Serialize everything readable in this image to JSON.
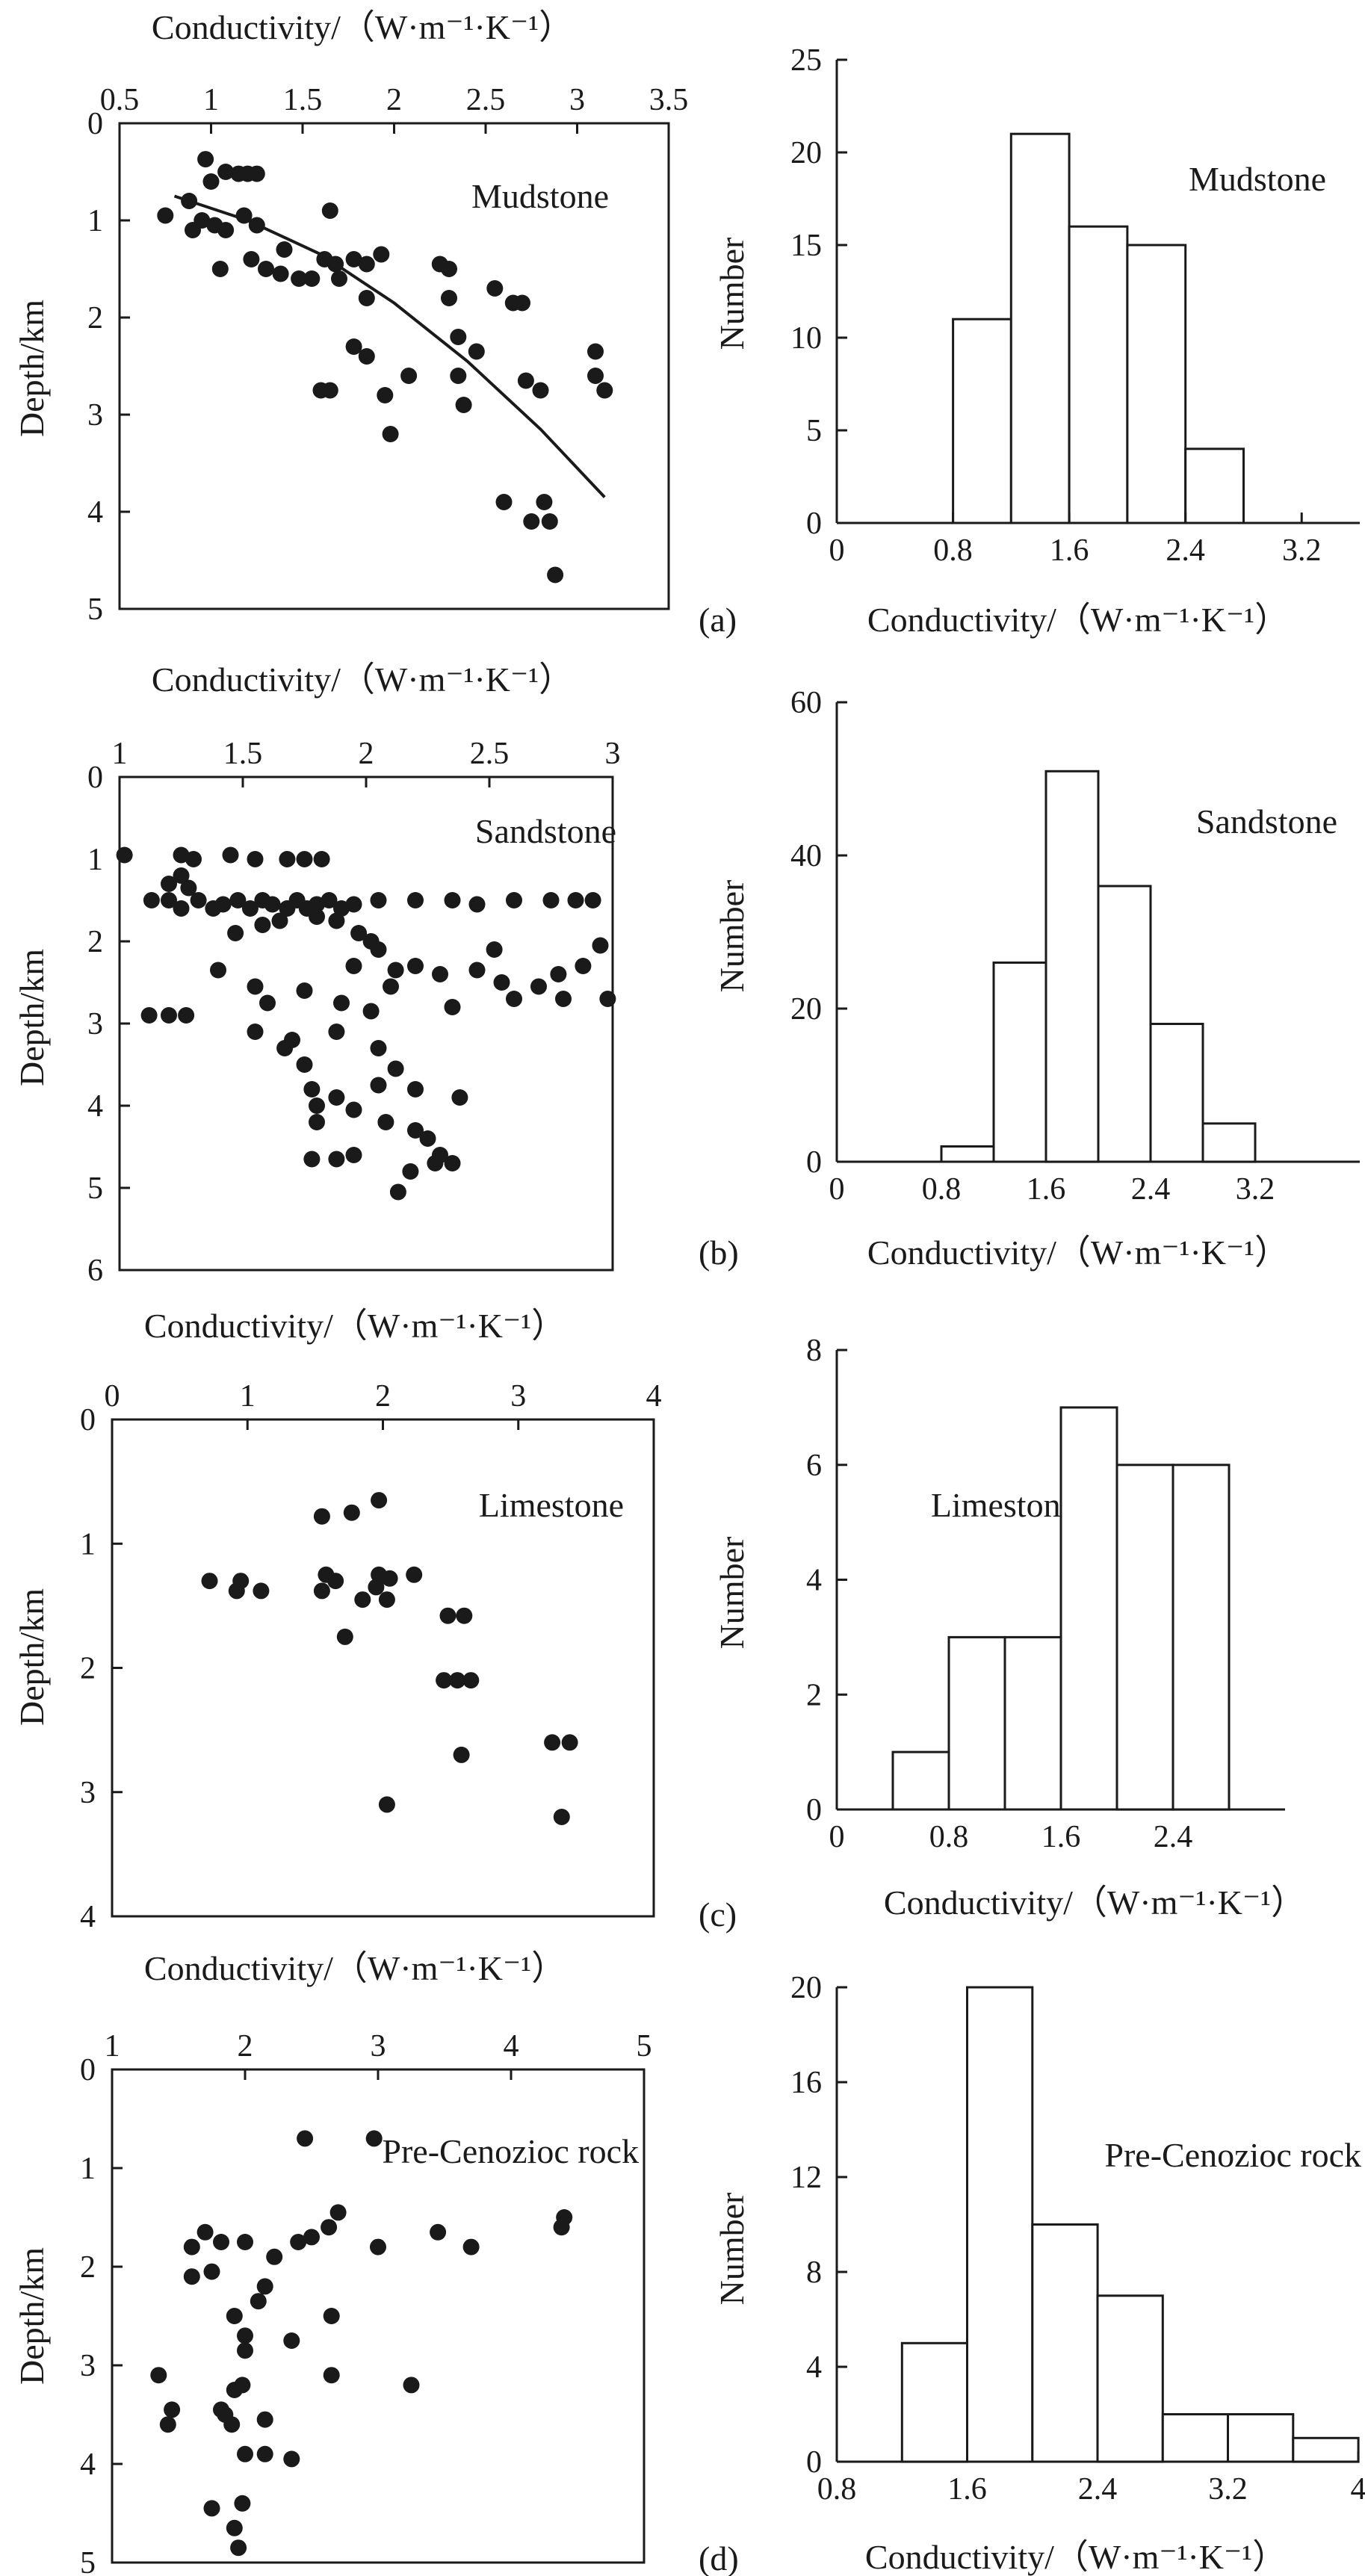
{
  "colors": {
    "ink": "#1a1a1a",
    "background": "#ffffff"
  },
  "chart_data": [
    {
      "type": "scatter",
      "panel": "(a)",
      "rock": "Mudstone",
      "xlabel": "Conductivity/（W·m⁻¹·K⁻¹）",
      "ylabel": "Depth/km",
      "xlim": [
        0.5,
        3.5
      ],
      "ylim": [
        0,
        5
      ],
      "xticks": [
        "0.5",
        "1",
        "1.5",
        "2",
        "2.5",
        "3",
        "3.5"
      ],
      "yticks": [
        "0",
        "1",
        "2",
        "3",
        "4",
        "5"
      ],
      "fit_curve": {
        "x": [
          0.8,
          1.2,
          1.6,
          2.0,
          2.4,
          2.8,
          3.15
        ],
        "y": [
          0.75,
          1.0,
          1.35,
          1.85,
          2.45,
          3.15,
          3.85
        ]
      },
      "points": [
        [
          0.97,
          0.37
        ],
        [
          1.08,
          0.5
        ],
        [
          1.15,
          0.52
        ],
        [
          1.2,
          0.52
        ],
        [
          1.25,
          0.52
        ],
        [
          1.0,
          0.6
        ],
        [
          0.88,
          0.8
        ],
        [
          0.95,
          1.0
        ],
        [
          1.02,
          1.05
        ],
        [
          1.08,
          1.1
        ],
        [
          1.18,
          0.95
        ],
        [
          1.25,
          1.05
        ],
        [
          0.75,
          0.95
        ],
        [
          0.9,
          1.1
        ],
        [
          1.05,
          1.5
        ],
        [
          1.22,
          1.4
        ],
        [
          1.3,
          1.5
        ],
        [
          1.38,
          1.55
        ],
        [
          1.48,
          1.6
        ],
        [
          1.55,
          1.6
        ],
        [
          1.62,
          1.4
        ],
        [
          1.68,
          1.45
        ],
        [
          1.78,
          1.4
        ],
        [
          1.85,
          1.45
        ],
        [
          1.93,
          1.35
        ],
        [
          1.7,
          1.6
        ],
        [
          1.85,
          1.8
        ],
        [
          1.4,
          1.3
        ],
        [
          1.65,
          0.9
        ],
        [
          2.25,
          1.45
        ],
        [
          2.3,
          1.5
        ],
        [
          2.3,
          1.8
        ],
        [
          2.55,
          1.7
        ],
        [
          2.65,
          1.85
        ],
        [
          2.7,
          1.85
        ],
        [
          2.35,
          2.2
        ],
        [
          2.45,
          2.35
        ],
        [
          1.78,
          2.3
        ],
        [
          1.85,
          2.4
        ],
        [
          1.95,
          2.8
        ],
        [
          1.6,
          2.75
        ],
        [
          1.65,
          2.75
        ],
        [
          2.08,
          2.6
        ],
        [
          2.35,
          2.6
        ],
        [
          2.38,
          2.9
        ],
        [
          2.72,
          2.65
        ],
        [
          2.8,
          2.75
        ],
        [
          3.1,
          2.35
        ],
        [
          3.1,
          2.6
        ],
        [
          3.15,
          2.75
        ],
        [
          1.98,
          3.2
        ],
        [
          2.6,
          3.9
        ],
        [
          2.82,
          3.9
        ],
        [
          2.75,
          4.1
        ],
        [
          2.85,
          4.1
        ],
        [
          2.88,
          4.65
        ]
      ]
    },
    {
      "type": "histogram",
      "panel": "(a)",
      "rock": "Mudstone",
      "xlabel": "Conductivity/（W·m⁻¹·K⁻¹）",
      "ylabel": "Number",
      "xlim": [
        0,
        3.6
      ],
      "ylim": [
        0,
        25
      ],
      "xticks": [
        "0",
        "0.8",
        "1.6",
        "2.4",
        "3.2"
      ],
      "yticks": [
        "0",
        "5",
        "10",
        "15",
        "20",
        "25"
      ],
      "bin_width": 0.4,
      "bins": [
        0.8,
        1.2,
        1.6,
        2.0,
        2.4
      ],
      "values": [
        11,
        21,
        16,
        15,
        4
      ]
    },
    {
      "type": "scatter",
      "panel": "(b)",
      "rock": "Sandstone",
      "xlabel": "Conductivity/（W·m⁻¹·K⁻¹）",
      "ylabel": "Depth/km",
      "xlim": [
        1,
        3
      ],
      "ylim": [
        0,
        6
      ],
      "xticks": [
        "1",
        "1.5",
        "2",
        "2.5",
        "3"
      ],
      "yticks": [
        "0",
        "1",
        "2",
        "3",
        "4",
        "5",
        "6"
      ],
      "points": [
        [
          1.02,
          0.95
        ],
        [
          1.25,
          0.95
        ],
        [
          1.3,
          1.0
        ],
        [
          1.45,
          0.95
        ],
        [
          1.55,
          1.0
        ],
        [
          1.68,
          1.0
        ],
        [
          1.75,
          1.0
        ],
        [
          1.82,
          1.0
        ],
        [
          1.2,
          1.3
        ],
        [
          1.25,
          1.2
        ],
        [
          1.28,
          1.35
        ],
        [
          1.13,
          1.5
        ],
        [
          1.2,
          1.5
        ],
        [
          1.25,
          1.6
        ],
        [
          1.32,
          1.5
        ],
        [
          1.38,
          1.6
        ],
        [
          1.42,
          1.55
        ],
        [
          1.48,
          1.5
        ],
        [
          1.53,
          1.6
        ],
        [
          1.58,
          1.5
        ],
        [
          1.62,
          1.55
        ],
        [
          1.68,
          1.6
        ],
        [
          1.72,
          1.5
        ],
        [
          1.76,
          1.6
        ],
        [
          1.8,
          1.55
        ],
        [
          1.85,
          1.5
        ],
        [
          1.9,
          1.6
        ],
        [
          1.95,
          1.55
        ],
        [
          2.05,
          1.5
        ],
        [
          2.2,
          1.5
        ],
        [
          2.35,
          1.5
        ],
        [
          2.45,
          1.55
        ],
        [
          2.6,
          1.5
        ],
        [
          2.75,
          1.5
        ],
        [
          2.85,
          1.5
        ],
        [
          2.92,
          1.5
        ],
        [
          1.47,
          1.9
        ],
        [
          1.58,
          1.8
        ],
        [
          1.65,
          1.75
        ],
        [
          1.8,
          1.7
        ],
        [
          1.88,
          1.75
        ],
        [
          1.97,
          1.9
        ],
        [
          2.02,
          2.0
        ],
        [
          2.05,
          2.1
        ],
        [
          1.95,
          2.3
        ],
        [
          2.12,
          2.35
        ],
        [
          2.2,
          2.3
        ],
        [
          2.3,
          2.4
        ],
        [
          2.45,
          2.35
        ],
        [
          2.52,
          2.1
        ],
        [
          2.55,
          2.5
        ],
        [
          2.6,
          2.7
        ],
        [
          2.7,
          2.55
        ],
        [
          2.78,
          2.4
        ],
        [
          2.88,
          2.3
        ],
        [
          2.95,
          2.05
        ],
        [
          2.98,
          2.7
        ],
        [
          2.8,
          2.7
        ],
        [
          1.4,
          2.35
        ],
        [
          1.55,
          2.55
        ],
        [
          1.6,
          2.75
        ],
        [
          1.75,
          2.6
        ],
        [
          1.9,
          2.75
        ],
        [
          2.02,
          2.85
        ],
        [
          2.1,
          2.55
        ],
        [
          2.35,
          2.8
        ],
        [
          1.12,
          2.9
        ],
        [
          1.2,
          2.9
        ],
        [
          1.27,
          2.9
        ],
        [
          1.55,
          3.1
        ],
        [
          1.7,
          3.2
        ],
        [
          1.88,
          3.1
        ],
        [
          2.05,
          3.3
        ],
        [
          1.67,
          3.3
        ],
        [
          1.75,
          3.5
        ],
        [
          1.78,
          3.8
        ],
        [
          1.88,
          3.9
        ],
        [
          1.95,
          4.05
        ],
        [
          2.05,
          3.75
        ],
        [
          2.12,
          3.55
        ],
        [
          2.2,
          3.8
        ],
        [
          2.2,
          4.3
        ],
        [
          2.25,
          4.4
        ],
        [
          1.8,
          4.2
        ],
        [
          2.38,
          3.9
        ],
        [
          1.78,
          4.65
        ],
        [
          1.88,
          4.65
        ],
        [
          1.95,
          4.6
        ],
        [
          2.28,
          4.7
        ],
        [
          2.35,
          4.7
        ],
        [
          2.18,
          4.8
        ],
        [
          2.13,
          5.05
        ],
        [
          1.8,
          4.0
        ],
        [
          2.08,
          4.2
        ],
        [
          2.3,
          4.6
        ]
      ]
    },
    {
      "type": "histogram",
      "panel": "(b)",
      "rock": "Sandstone",
      "xlabel": "Conductivity/（W·m⁻¹·K⁻¹）",
      "ylabel": "Number",
      "xlim": [
        0,
        4.0
      ],
      "ylim": [
        0,
        60
      ],
      "xticks": [
        "0",
        "0.8",
        "1.6",
        "2.4",
        "3.2"
      ],
      "yticks": [
        "0",
        "20",
        "40",
        "60"
      ],
      "bin_width": 0.4,
      "bins": [
        0.8,
        1.2,
        1.6,
        2.0,
        2.4,
        2.8
      ],
      "values": [
        2,
        26,
        51,
        36,
        18,
        5
      ]
    },
    {
      "type": "scatter",
      "panel": "(c)",
      "rock": "Limestone",
      "xlabel": "Conductivity/（W·m⁻¹·K⁻¹）",
      "ylabel": "Depth/km",
      "xlim": [
        0,
        4
      ],
      "ylim": [
        0,
        4
      ],
      "xticks": [
        "0",
        "1",
        "2",
        "3",
        "4"
      ],
      "yticks": [
        "0",
        "1",
        "2",
        "3",
        "4"
      ],
      "points": [
        [
          1.97,
          0.65
        ],
        [
          1.55,
          0.78
        ],
        [
          1.77,
          0.75
        ],
        [
          0.72,
          1.3
        ],
        [
          0.95,
          1.3
        ],
        [
          1.1,
          1.38
        ],
        [
          0.92,
          1.38
        ],
        [
          1.58,
          1.25
        ],
        [
          1.65,
          1.3
        ],
        [
          1.97,
          1.25
        ],
        [
          2.05,
          1.28
        ],
        [
          2.23,
          1.25
        ],
        [
          1.55,
          1.38
        ],
        [
          1.95,
          1.35
        ],
        [
          2.03,
          1.45
        ],
        [
          1.85,
          1.45
        ],
        [
          1.72,
          1.75
        ],
        [
          2.48,
          1.58
        ],
        [
          2.6,
          1.58
        ],
        [
          2.45,
          2.1
        ],
        [
          2.55,
          2.1
        ],
        [
          2.65,
          2.1
        ],
        [
          2.58,
          2.7
        ],
        [
          3.25,
          2.6
        ],
        [
          3.38,
          2.6
        ],
        [
          3.32,
          3.2
        ],
        [
          2.03,
          3.1
        ]
      ]
    },
    {
      "type": "histogram",
      "panel": "(c)",
      "rock": "Limestone",
      "xlabel": "Conductivity/（W·m⁻¹·K⁻¹）",
      "ylabel": "Number",
      "xlim": [
        0,
        3.2
      ],
      "ylim": [
        0,
        8
      ],
      "xticks": [
        "0",
        "0.8",
        "1.6",
        "2.4"
      ],
      "yticks": [
        "0",
        "2",
        "4",
        "6",
        "8"
      ],
      "bin_width": 0.4,
      "bins": [
        0.4,
        0.8,
        1.2,
        1.6,
        2.0,
        2.4
      ],
      "values": [
        1,
        3,
        3,
        7,
        6,
        6
      ]
    },
    {
      "type": "scatter",
      "panel": "(d)",
      "rock": "Pre-Cenozioc rock",
      "xlabel": "Conductivity/（W·m⁻¹·K⁻¹）",
      "ylabel": "Depth/km",
      "xlim": [
        1,
        5
      ],
      "ylim": [
        0,
        5
      ],
      "xticks": [
        "1",
        "2",
        "3",
        "4",
        "5"
      ],
      "yticks": [
        "0",
        "1",
        "2",
        "3",
        "4",
        "5"
      ],
      "points": [
        [
          2.45,
          0.7
        ],
        [
          2.97,
          0.7
        ],
        [
          2.7,
          1.45
        ],
        [
          2.63,
          1.6
        ],
        [
          2.5,
          1.7
        ],
        [
          2.4,
          1.75
        ],
        [
          1.7,
          1.65
        ],
        [
          1.6,
          1.8
        ],
        [
          1.82,
          1.75
        ],
        [
          1.75,
          2.05
        ],
        [
          1.6,
          2.1
        ],
        [
          2.0,
          1.75
        ],
        [
          2.22,
          1.9
        ],
        [
          2.15,
          2.2
        ],
        [
          2.1,
          2.35
        ],
        [
          1.92,
          2.5
        ],
        [
          2.0,
          2.7
        ],
        [
          2.0,
          2.85
        ],
        [
          1.92,
          3.25
        ],
        [
          1.98,
          3.2
        ],
        [
          1.85,
          3.5
        ],
        [
          1.9,
          3.6
        ],
        [
          1.82,
          3.45
        ],
        [
          2.15,
          3.55
        ],
        [
          2.15,
          3.9
        ],
        [
          2.35,
          3.95
        ],
        [
          1.98,
          4.4
        ],
        [
          1.75,
          4.45
        ],
        [
          1.92,
          4.65
        ],
        [
          1.95,
          4.85
        ],
        [
          1.35,
          3.1
        ],
        [
          1.45,
          3.45
        ],
        [
          1.42,
          3.6
        ],
        [
          2.35,
          2.75
        ],
        [
          2.65,
          2.5
        ],
        [
          2.65,
          3.1
        ],
        [
          3.0,
          1.8
        ],
        [
          3.25,
          3.2
        ],
        [
          3.45,
          1.65
        ],
        [
          3.7,
          1.8
        ],
        [
          4.4,
          1.5
        ],
        [
          4.38,
          1.6
        ],
        [
          2.0,
          3.9
        ]
      ]
    },
    {
      "type": "histogram",
      "panel": "(d)",
      "rock": "Pre-Cenozioc rock",
      "xlabel": "Conductivity/（W·m⁻¹·K⁻¹）",
      "ylabel": "Number",
      "xlim": [
        0.8,
        4.0
      ],
      "ylim": [
        0,
        20
      ],
      "xticks": [
        "0.8",
        "1.6",
        "2.4",
        "3.2",
        "4"
      ],
      "yticks": [
        "0",
        "4",
        "8",
        "12",
        "16",
        "20"
      ],
      "bin_width": 0.4,
      "bins": [
        1.2,
        1.6,
        2.0,
        2.4,
        2.8,
        3.2,
        3.6
      ],
      "values": [
        5,
        20,
        10,
        7,
        2,
        2,
        1
      ]
    }
  ]
}
